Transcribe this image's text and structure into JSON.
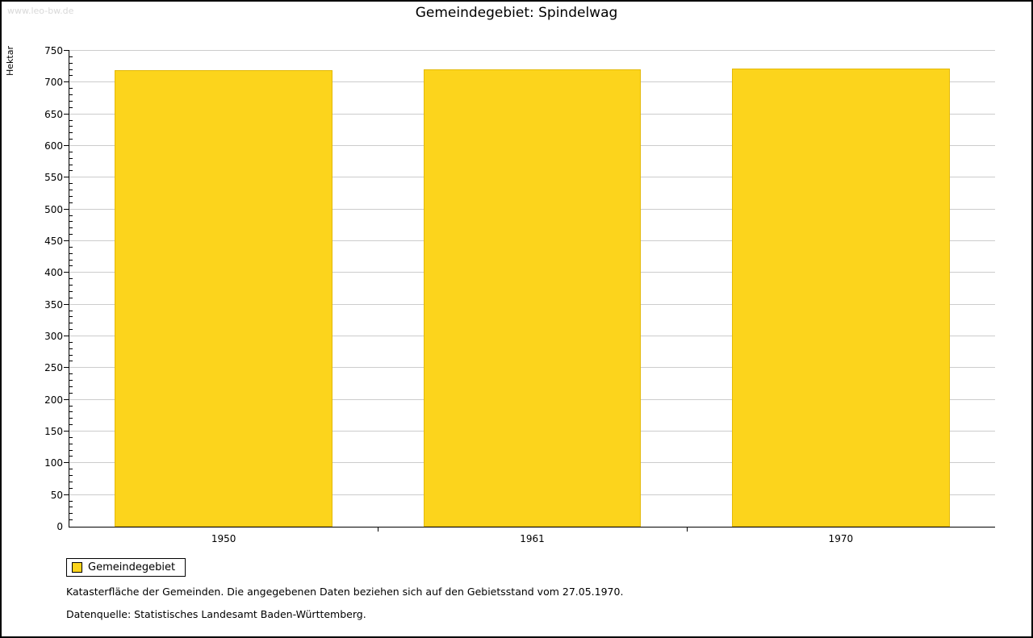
{
  "watermark": "www.leo-bw.de",
  "title": "Gemeindegebiet: Spindelwag",
  "y_axis_title": "Hektar",
  "legend": {
    "label": "Gemeindegebiet",
    "color": "#fcd41c"
  },
  "footnotes": [
    "Katasterfläche der Gemeinden. Die angegebenen Daten beziehen sich auf den Gebietsstand vom 27.05.1970.",
    "Datenquelle: Statistisches Landesamt Baden-Württemberg."
  ],
  "chart_data": {
    "type": "bar",
    "title": "Gemeindegebiet: Spindelwag",
    "xlabel": "",
    "ylabel": "Hektar",
    "categories": [
      "1950",
      "1961",
      "1970"
    ],
    "values": [
      720,
      721,
      722
    ],
    "ylim": [
      0,
      750
    ],
    "y_major_step": 50,
    "y_minor_step": 10,
    "bar_color": "#fcd41c",
    "grid": true,
    "gridline_color": "#cccccc",
    "legend_position": "bottom-left",
    "legend_entries": [
      "Gemeindegebiet"
    ]
  }
}
